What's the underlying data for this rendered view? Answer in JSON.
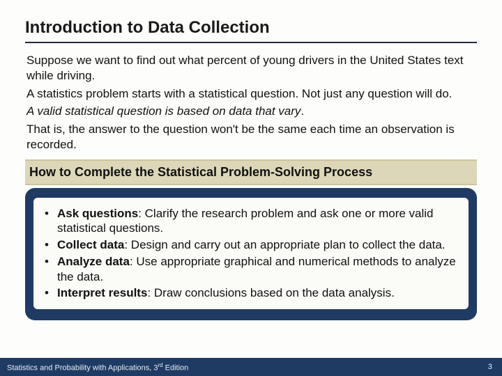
{
  "colors": {
    "page_bg": "#fdfdfb",
    "title_rule": "#1f2a36",
    "section_header_bg": "#ddd7b9",
    "section_header_border": "#ccc49e",
    "box_bg": "#1f3b63",
    "box_inner_bg": "#fbfbf7",
    "footer_bg": "#1f3b63",
    "footer_text": "#e8eef6"
  },
  "typography": {
    "title_fontsize": 24,
    "body_fontsize": 17,
    "section_header_fontsize": 18,
    "footer_fontsize": 11
  },
  "title": "Introduction to Data Collection",
  "body": {
    "p1": "Suppose we want to find out what percent of young drivers in the United States text while driving.",
    "p2": " A statistics problem starts with a statistical question. Not just any question will do.",
    "p3_italic": "A valid statistical question is based on data that vary",
    "p3_tail": ".",
    "p4": "That is, the answer to the question won't be the same each time an observation is recorded."
  },
  "section_header": "How to Complete the Statistical Problem-Solving Process",
  "steps": [
    {
      "term": "Ask questions",
      "rest": ": Clarify the research problem and ask one or more valid statistical questions."
    },
    {
      "term": "Collect data",
      "rest": ": Design and carry out an appropriate plan to collect the data."
    },
    {
      "term": "Analyze data",
      "rest": ": Use appropriate graphical and numerical methods to analyze the data."
    },
    {
      "term": "Interpret results",
      "rest": ": Draw conclusions based on the data analysis."
    }
  ],
  "footer": {
    "book": "Statistics and Probability with Applications, 3",
    "ed_suffix": "rd",
    "ed_tail": " Edition",
    "page": "3"
  }
}
